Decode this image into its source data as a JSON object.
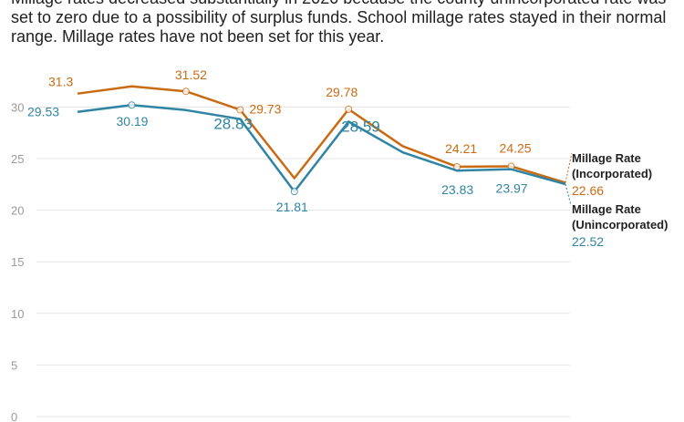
{
  "caption": "Millage rates decreased substantially in 2020 because the county unincorporated rate was set to zero due to a possibility of surplus funds. School millage rates stayed in their normal range. Millage rates have not been set for this year.",
  "colors": {
    "incorporated": "#c96b12",
    "unincorporated": "#2f85a3",
    "grid": "#e4e4e4",
    "tick": "#9a9a9a"
  },
  "chart_data": {
    "type": "line",
    "ylim": [
      0,
      33
    ],
    "yticks": [
      0,
      5,
      10,
      15,
      20,
      25,
      30
    ],
    "grid": true,
    "series": [
      {
        "name": "Millage Rate (Incorporated)",
        "label_lines": [
          "Millage Rate",
          "(Incorporated)"
        ],
        "color": "#c96b12",
        "values": [
          31.3,
          32.0,
          31.52,
          29.73,
          23.1,
          29.78,
          26.2,
          24.21,
          24.25,
          22.66
        ],
        "labels": [
          "31.3",
          "",
          "31.52",
          "29.73",
          "",
          "29.78",
          "",
          "24.21",
          "24.25",
          "22.66"
        ],
        "markers": [
          false,
          false,
          true,
          true,
          false,
          true,
          false,
          true,
          true,
          false
        ]
      },
      {
        "name": "Millage Rate (Unincorporated)",
        "label_lines": [
          "Millage Rate",
          "(Unincorporated)"
        ],
        "color": "#2f85a3",
        "values": [
          29.53,
          30.19,
          29.7,
          28.83,
          21.81,
          28.59,
          25.6,
          23.83,
          23.97,
          22.52
        ],
        "labels": [
          "29.53",
          "30.19",
          "",
          "28.83",
          "21.81",
          "28.59",
          "",
          "23.83",
          "23.97",
          "22.52"
        ],
        "markers": [
          false,
          true,
          false,
          false,
          true,
          false,
          false,
          false,
          false,
          false
        ]
      }
    ]
  }
}
